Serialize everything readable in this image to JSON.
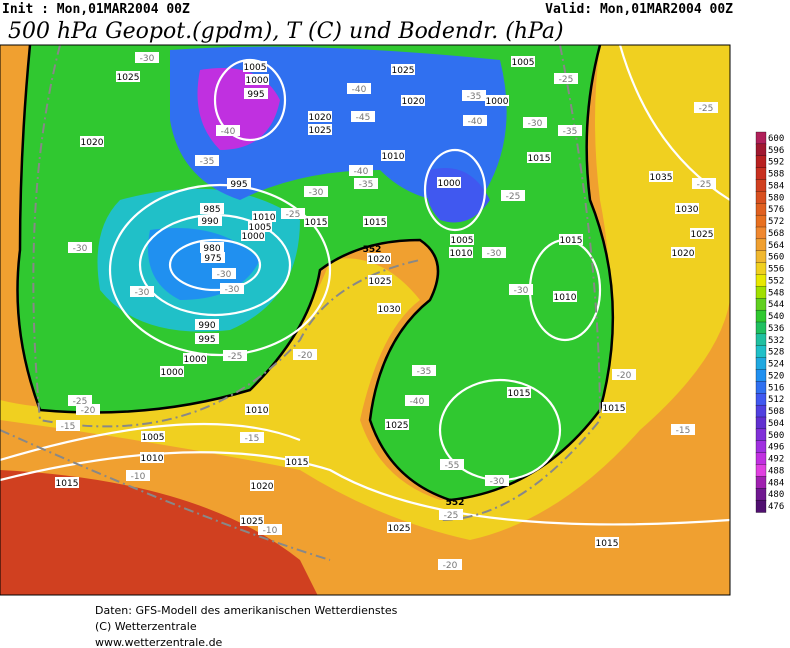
{
  "header": {
    "init": "Init : Mon,01MAR2004 00Z",
    "valid": "Valid: Mon,01MAR2004 00Z",
    "title": "500 hPa Geopot.(gpdm), T (C) und Bodendr. (hPa)"
  },
  "legend": {
    "levels": [
      600,
      596,
      592,
      588,
      584,
      580,
      576,
      572,
      568,
      564,
      560,
      556,
      552,
      548,
      544,
      540,
      536,
      532,
      528,
      524,
      520,
      516,
      512,
      508,
      504,
      500,
      496,
      492,
      488,
      484,
      480,
      476
    ],
    "colors": [
      "#b0205a",
      "#a01830",
      "#b82020",
      "#c83020",
      "#d04020",
      "#d85020",
      "#e06020",
      "#e87020",
      "#f08830",
      "#f0a030",
      "#f0b830",
      "#f0d020",
      "#e8e800",
      "#a0e000",
      "#60d020",
      "#30c830",
      "#20c060",
      "#20c0a0",
      "#20c0c8",
      "#20a8e0",
      "#2090f0",
      "#3070f0",
      "#4058f0",
      "#5040e0",
      "#6030d0",
      "#8030d8",
      "#a030e0",
      "#c030e0",
      "#e040e0",
      "#a020b0",
      "#701890",
      "#501070"
    ]
  },
  "map": {
    "isobar_labels": [
      1025,
      1005,
      1000,
      995,
      1020,
      1020,
      1025,
      1025,
      1020,
      1005,
      1000,
      1010,
      1015,
      1000,
      995,
      985,
      1010,
      1005,
      1000,
      990,
      980,
      975,
      1015,
      1015,
      1020,
      1025,
      1030,
      1005,
      1010,
      1015,
      1010,
      1035,
      1030,
      1025,
      1020,
      990,
      995,
      1000,
      1000,
      1010,
      1015,
      1025,
      1015,
      1005,
      1010,
      1015,
      1015,
      1020,
      1025,
      1025,
      1015
    ],
    "temperature_labels": [
      -30,
      -40,
      -35,
      -45,
      -40,
      -35,
      -25,
      -40,
      -30,
      -35,
      -40,
      -35,
      -30,
      -25,
      -30,
      -30,
      -30,
      -30,
      -25,
      -20,
      -25,
      -20,
      -15,
      -15,
      -10,
      -10,
      -20,
      -25,
      -30,
      -55,
      -40,
      -35,
      -30,
      -30,
      -25,
      -25,
      -25,
      -20,
      -15
    ],
    "boundary_labels": [
      552,
      552
    ]
  },
  "footer": {
    "lines": [
      "Daten: GFS-Modell des amerikanischen Wetterdienstes",
      "(C) Wetterzentrale",
      "www.wetterzentrale.de"
    ]
  }
}
